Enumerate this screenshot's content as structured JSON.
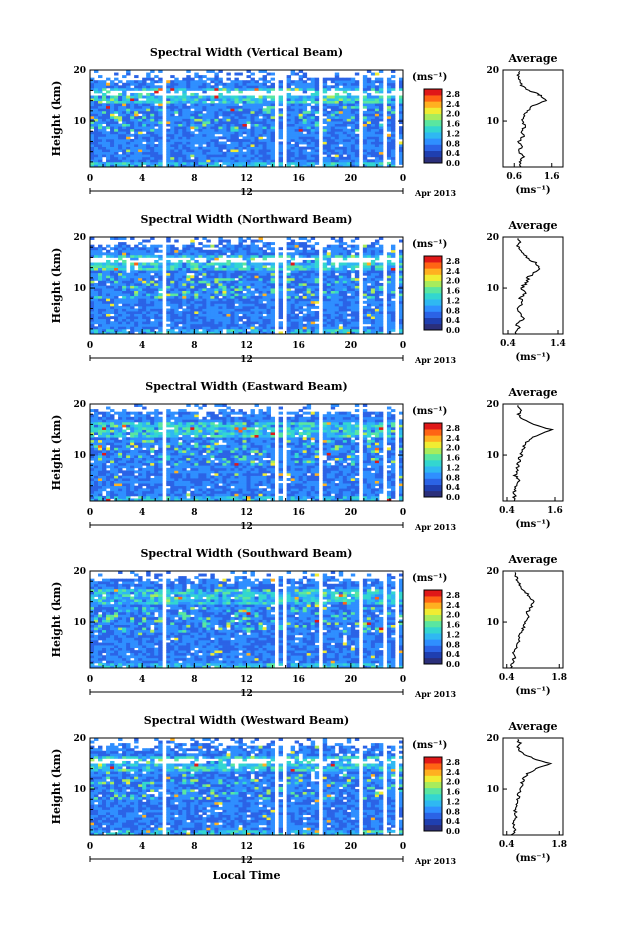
{
  "figure": {
    "xlabel": "Local Time",
    "date_label": "Apr 2013",
    "day_mark": "12",
    "colorbar_unit": "(ms⁻¹)",
    "avg_title": "Average",
    "avg_xlabel": "(ms⁻¹)",
    "ylabel": "Height (km)",
    "colors": {
      "scale": [
        "#2b2f7a",
        "#1f3fb0",
        "#2b63e6",
        "#2f8fff",
        "#2fb8f2",
        "#33d6d0",
        "#5ae6a0",
        "#a8ec5c",
        "#f0ec32",
        "#ffb020",
        "#ff6414",
        "#e01818"
      ]
    }
  },
  "chart_data": [
    {
      "type": "heatmap",
      "title": "Spectral Width (Vertical Beam)",
      "x_ticks": [
        "0",
        "4",
        "8",
        "12",
        "16",
        "20",
        "0"
      ],
      "y_ticks": [
        "20",
        "10"
      ],
      "xlim": [
        0,
        24
      ],
      "ylim": [
        1,
        20
      ],
      "colorbar_ticks": [
        "2.8",
        "2.4",
        "2.0",
        "1.6",
        "1.2",
        "0.8",
        "0.4",
        "0.0"
      ],
      "colorbar_range": [
        0,
        3.0
      ],
      "avg": {
        "x_ticks": [
          "0.6",
          "1.6"
        ],
        "xlim": [
          0.3,
          1.9
        ],
        "y_ticks": [
          "20",
          "10"
        ],
        "profile": [
          [
            1,
            0.8
          ],
          [
            2,
            0.75
          ],
          [
            3,
            0.85
          ],
          [
            4,
            0.7
          ],
          [
            5,
            0.8
          ],
          [
            6,
            0.72
          ],
          [
            7,
            0.85
          ],
          [
            8,
            0.78
          ],
          [
            9,
            0.9
          ],
          [
            10,
            0.8
          ],
          [
            11,
            0.85
          ],
          [
            12,
            0.95
          ],
          [
            13,
            1.1
          ],
          [
            14,
            1.45
          ],
          [
            15,
            1.3
          ],
          [
            15.5,
            1.2
          ],
          [
            16,
            1.0
          ],
          [
            17,
            0.8
          ],
          [
            18,
            0.72
          ],
          [
            19,
            0.7
          ],
          [
            20,
            0.72
          ]
        ]
      }
    },
    {
      "type": "heatmap",
      "title": "Spectral Width (Northward Beam)",
      "x_ticks": [
        "0",
        "4",
        "8",
        "12",
        "16",
        "20",
        "0"
      ],
      "y_ticks": [
        "20",
        "10"
      ],
      "xlim": [
        0,
        24
      ],
      "ylim": [
        1,
        20
      ],
      "colorbar_ticks": [
        "2.8",
        "2.4",
        "2.0",
        "1.6",
        "1.2",
        "0.8",
        "0.4",
        "0.0"
      ],
      "colorbar_range": [
        0,
        3.0
      ],
      "avg": {
        "x_ticks": [
          "0.4",
          "1.4"
        ],
        "xlim": [
          0.3,
          1.5
        ],
        "y_ticks": [
          "20",
          "10"
        ],
        "profile": [
          [
            1,
            0.55
          ],
          [
            2,
            0.62
          ],
          [
            3,
            0.58
          ],
          [
            4,
            0.7
          ],
          [
            5,
            0.65
          ],
          [
            6,
            0.6
          ],
          [
            7,
            0.7
          ],
          [
            8,
            0.65
          ],
          [
            9,
            0.72
          ],
          [
            10,
            0.68
          ],
          [
            11,
            0.75
          ],
          [
            12,
            0.8
          ],
          [
            13,
            0.9
          ],
          [
            14,
            1.05
          ],
          [
            15,
            0.95
          ],
          [
            16,
            0.75
          ],
          [
            17,
            0.7
          ],
          [
            18,
            0.6
          ],
          [
            19,
            0.62
          ],
          [
            20,
            0.55
          ]
        ]
      }
    },
    {
      "type": "heatmap",
      "title": "Spectral Width (Eastward Beam)",
      "x_ticks": [
        "0",
        "4",
        "8",
        "12",
        "16",
        "20",
        "0"
      ],
      "y_ticks": [
        "20",
        "10"
      ],
      "xlim": [
        0,
        24
      ],
      "ylim": [
        1,
        20
      ],
      "colorbar_ticks": [
        "2.8",
        "2.4",
        "2.0",
        "1.6",
        "1.2",
        "0.8",
        "0.4",
        "0.0"
      ],
      "colorbar_range": [
        0,
        3.0
      ],
      "avg": {
        "x_ticks": [
          "0.4",
          "1.6"
        ],
        "xlim": [
          0.3,
          1.8
        ],
        "y_ticks": [
          "20",
          "10"
        ],
        "profile": [
          [
            1,
            0.55
          ],
          [
            2,
            0.6
          ],
          [
            3,
            0.58
          ],
          [
            4,
            0.62
          ],
          [
            5,
            0.7
          ],
          [
            6,
            0.6
          ],
          [
            7,
            0.65
          ],
          [
            8,
            0.68
          ],
          [
            9,
            0.7
          ],
          [
            10,
            0.75
          ],
          [
            11,
            0.8
          ],
          [
            12,
            0.85
          ],
          [
            13,
            0.95
          ],
          [
            14,
            1.2
          ],
          [
            15,
            1.5
          ],
          [
            16,
            1.1
          ],
          [
            17,
            0.8
          ],
          [
            18,
            0.7
          ],
          [
            19,
            0.75
          ],
          [
            20,
            0.65
          ]
        ]
      }
    },
    {
      "type": "heatmap",
      "title": "Spectral Width (Southward Beam)",
      "x_ticks": [
        "0",
        "4",
        "8",
        "12",
        "16",
        "20",
        "0"
      ],
      "y_ticks": [
        "20",
        "10"
      ],
      "xlim": [
        0,
        24
      ],
      "ylim": [
        1,
        20
      ],
      "colorbar_ticks": [
        "2.8",
        "2.4",
        "2.0",
        "1.6",
        "1.2",
        "0.8",
        "0.4",
        "0.0"
      ],
      "colorbar_range": [
        0,
        3.0
      ],
      "avg": {
        "x_ticks": [
          "0.4",
          "1.8"
        ],
        "xlim": [
          0.3,
          1.9
        ],
        "y_ticks": [
          "20",
          "10"
        ],
        "profile": [
          [
            1,
            0.5
          ],
          [
            2,
            0.55
          ],
          [
            3,
            0.6
          ],
          [
            4,
            0.58
          ],
          [
            5,
            0.65
          ],
          [
            6,
            0.7
          ],
          [
            7,
            0.72
          ],
          [
            8,
            0.8
          ],
          [
            9,
            0.85
          ],
          [
            10,
            0.9
          ],
          [
            11,
            1.0
          ],
          [
            12,
            0.95
          ],
          [
            13,
            1.05
          ],
          [
            14,
            1.1
          ],
          [
            15,
            1.0
          ],
          [
            16,
            0.9
          ],
          [
            17,
            0.75
          ],
          [
            18,
            0.7
          ],
          [
            19,
            0.65
          ],
          [
            20,
            0.6
          ]
        ]
      }
    },
    {
      "type": "heatmap",
      "title": "Spectral Width (Westward Beam)",
      "x_ticks": [
        "0",
        "4",
        "8",
        "12",
        "16",
        "20",
        "0"
      ],
      "y_ticks": [
        "20",
        "10"
      ],
      "xlim": [
        0,
        24
      ],
      "ylim": [
        1,
        20
      ],
      "colorbar_ticks": [
        "2.8",
        "2.4",
        "2.0",
        "1.6",
        "1.2",
        "0.8",
        "0.4",
        "0.0"
      ],
      "colorbar_range": [
        0,
        3.0
      ],
      "avg": {
        "x_ticks": [
          "0.4",
          "1.8"
        ],
        "xlim": [
          0.3,
          1.9
        ],
        "y_ticks": [
          "20",
          "10"
        ],
        "profile": [
          [
            1,
            0.55
          ],
          [
            2,
            0.6
          ],
          [
            3,
            0.58
          ],
          [
            4,
            0.62
          ],
          [
            5,
            0.65
          ],
          [
            6,
            0.6
          ],
          [
            7,
            0.68
          ],
          [
            8,
            0.7
          ],
          [
            9,
            0.72
          ],
          [
            10,
            0.78
          ],
          [
            11,
            0.8
          ],
          [
            12,
            0.85
          ],
          [
            13,
            0.95
          ],
          [
            14,
            1.2
          ],
          [
            15,
            1.55
          ],
          [
            16,
            1.1
          ],
          [
            17,
            0.8
          ],
          [
            18,
            0.7
          ],
          [
            19,
            0.75
          ],
          [
            20,
            0.65
          ]
        ]
      }
    }
  ]
}
